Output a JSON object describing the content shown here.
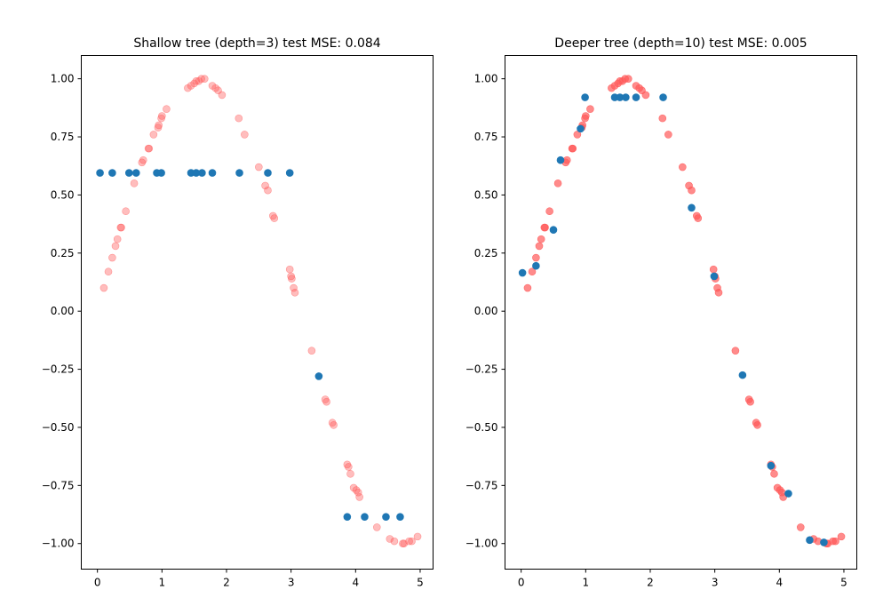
{
  "chart_data": [
    {
      "type": "scatter",
      "title": "Shallow tree (depth=3) test MSE: 0.084",
      "xlim": [
        -0.25,
        5.2
      ],
      "ylim": [
        -1.11,
        1.1
      ],
      "xticks": [
        0,
        1,
        2,
        3,
        4,
        5
      ],
      "xtick_labels": [
        "0",
        "1",
        "2",
        "3",
        "4",
        "5"
      ],
      "yticks": [
        -1.0,
        -0.75,
        -0.5,
        -0.25,
        0.0,
        0.25,
        0.5,
        0.75,
        1.0
      ],
      "ytick_labels": [
        "−1.00",
        "−0.75",
        "−0.50",
        "−0.25",
        "0.00",
        "0.25",
        "0.50",
        "0.75",
        "1.00"
      ],
      "grid": false,
      "series": [
        {
          "color": "#ff5a5a",
          "alpha": 0.4,
          "x": [
            0.1,
            0.17,
            0.23,
            0.28,
            0.31,
            0.36,
            0.37,
            0.44,
            0.57,
            0.69,
            0.71,
            0.79,
            0.8,
            0.87,
            0.94,
            0.95,
            0.99,
            1.0,
            1.07,
            1.4,
            1.45,
            1.5,
            1.53,
            1.57,
            1.61,
            1.66,
            1.78,
            1.83,
            1.87,
            1.93,
            2.19,
            2.28,
            2.5,
            2.6,
            2.64,
            2.72,
            2.74,
            2.98,
            3.0,
            3.01,
            3.04,
            3.06,
            3.32,
            3.53,
            3.55,
            3.64,
            3.66,
            3.87,
            3.89,
            3.92,
            3.97,
            4.01,
            4.04,
            4.06,
            4.33,
            4.53,
            4.6,
            4.73,
            4.75,
            4.83,
            4.87,
            4.96
          ],
          "y": [
            0.1,
            0.17,
            0.23,
            0.28,
            0.31,
            0.36,
            0.36,
            0.43,
            0.55,
            0.64,
            0.65,
            0.7,
            0.7,
            0.76,
            0.79,
            0.8,
            0.83,
            0.84,
            0.87,
            0.96,
            0.97,
            0.98,
            0.99,
            0.99,
            1.0,
            1.0,
            0.97,
            0.96,
            0.95,
            0.93,
            0.83,
            0.76,
            0.62,
            0.54,
            0.52,
            0.41,
            0.4,
            0.18,
            0.15,
            0.14,
            0.1,
            0.08,
            -0.17,
            -0.38,
            -0.39,
            -0.48,
            -0.49,
            -0.66,
            -0.67,
            -0.7,
            -0.76,
            -0.77,
            -0.78,
            -0.8,
            -0.93,
            -0.98,
            -0.99,
            -1.0,
            -1.0,
            -0.99,
            -0.99,
            -0.97
          ]
        },
        {
          "color": "#1f77b4",
          "alpha": 1,
          "x": [
            0.04,
            0.23,
            0.49,
            0.6,
            0.92,
            0.99,
            1.45,
            1.53,
            1.62,
            1.78,
            2.2,
            2.64,
            2.98,
            3.43,
            3.87,
            4.14,
            4.47,
            4.69
          ],
          "y": [
            0.595,
            0.595,
            0.595,
            0.595,
            0.595,
            0.595,
            0.595,
            0.595,
            0.595,
            0.595,
            0.595,
            0.595,
            0.595,
            -0.28,
            -0.885,
            -0.885,
            -0.885,
            -0.885
          ]
        }
      ]
    },
    {
      "type": "scatter",
      "title": "Deeper tree (depth=10) test MSE: 0.005",
      "xlim": [
        -0.25,
        5.2
      ],
      "ylim": [
        -1.11,
        1.1
      ],
      "xticks": [
        0,
        1,
        2,
        3,
        4,
        5
      ],
      "xtick_labels": [
        "0",
        "1",
        "2",
        "3",
        "4",
        "5"
      ],
      "yticks": [
        -1.0,
        -0.75,
        -0.5,
        -0.25,
        0.0,
        0.25,
        0.5,
        0.75,
        1.0
      ],
      "ytick_labels": [
        "−1.00",
        "−0.75",
        "−0.50",
        "−0.25",
        "0.00",
        "0.25",
        "0.50",
        "0.75",
        "1.00"
      ],
      "grid": false,
      "series": [
        {
          "color": "#ff5a5a",
          "alpha": 0.7,
          "x": [
            0.1,
            0.17,
            0.23,
            0.28,
            0.31,
            0.36,
            0.37,
            0.44,
            0.57,
            0.69,
            0.71,
            0.79,
            0.8,
            0.87,
            0.94,
            0.95,
            0.99,
            1.0,
            1.07,
            1.4,
            1.45,
            1.5,
            1.53,
            1.57,
            1.61,
            1.66,
            1.78,
            1.83,
            1.87,
            1.93,
            2.19,
            2.28,
            2.5,
            2.6,
            2.64,
            2.72,
            2.74,
            2.98,
            3.0,
            3.01,
            3.04,
            3.06,
            3.32,
            3.53,
            3.55,
            3.64,
            3.66,
            3.87,
            3.89,
            3.92,
            3.97,
            4.01,
            4.04,
            4.06,
            4.33,
            4.53,
            4.6,
            4.73,
            4.75,
            4.83,
            4.87,
            4.96
          ],
          "y": [
            0.1,
            0.17,
            0.23,
            0.28,
            0.31,
            0.36,
            0.36,
            0.43,
            0.55,
            0.64,
            0.65,
            0.7,
            0.7,
            0.76,
            0.79,
            0.8,
            0.83,
            0.84,
            0.87,
            0.96,
            0.97,
            0.98,
            0.99,
            0.99,
            1.0,
            1.0,
            0.97,
            0.96,
            0.95,
            0.93,
            0.83,
            0.76,
            0.62,
            0.54,
            0.52,
            0.41,
            0.4,
            0.18,
            0.15,
            0.14,
            0.1,
            0.08,
            -0.17,
            -0.38,
            -0.39,
            -0.48,
            -0.49,
            -0.66,
            -0.67,
            -0.7,
            -0.76,
            -0.77,
            -0.78,
            -0.8,
            -0.93,
            -0.98,
            -0.99,
            -1.0,
            -1.0,
            -0.99,
            -0.99,
            -0.97
          ]
        },
        {
          "color": "#1f77b4",
          "alpha": 1,
          "x": [
            0.02,
            0.23,
            0.5,
            0.61,
            0.92,
            0.99,
            1.45,
            1.53,
            1.62,
            1.78,
            2.2,
            2.64,
            2.99,
            3.43,
            3.87,
            4.14,
            4.47,
            4.69
          ],
          "y": [
            0.165,
            0.195,
            0.35,
            0.65,
            0.785,
            0.92,
            0.92,
            0.92,
            0.92,
            0.92,
            0.92,
            0.445,
            0.15,
            -0.275,
            -0.665,
            -0.785,
            -0.985,
            -0.995
          ]
        }
      ]
    }
  ]
}
